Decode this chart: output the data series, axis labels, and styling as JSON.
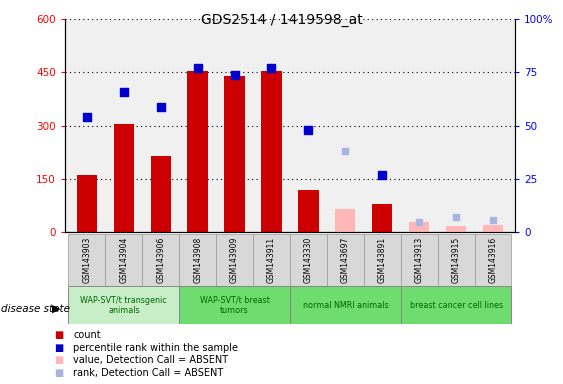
{
  "title": "GDS2514 / 1419598_at",
  "samples": [
    "GSM143903",
    "GSM143904",
    "GSM143906",
    "GSM143908",
    "GSM143909",
    "GSM143911",
    "GSM143330",
    "GSM143697",
    "GSM143891",
    "GSM143913",
    "GSM143915",
    "GSM143916"
  ],
  "count_values": [
    160,
    305,
    215,
    455,
    440,
    455,
    120,
    null,
    80,
    null,
    null,
    null
  ],
  "count_absent": [
    null,
    null,
    null,
    null,
    null,
    null,
    null,
    65,
    null,
    28,
    18,
    22
  ],
  "rank_values_pct": [
    54,
    66,
    59,
    77,
    74,
    77,
    48,
    null,
    27,
    null,
    null,
    null
  ],
  "rank_absent_pct": [
    null,
    null,
    null,
    null,
    null,
    null,
    null,
    38,
    null,
    5,
    7,
    6
  ],
  "groups": [
    {
      "label": "WAP-SVT/t transgenic\nanimals",
      "start": 0,
      "end": 3,
      "color": "#c8eec8"
    },
    {
      "label": "WAP-SVT/t breast\ntumors",
      "start": 3,
      "end": 6,
      "color": "#6fdc6f"
    },
    {
      "label": "normal NMRI animals",
      "start": 6,
      "end": 9,
      "color": "#6fdc6f"
    },
    {
      "label": "breast cancer cell lines",
      "start": 9,
      "end": 12,
      "color": "#6fdc6f"
    }
  ],
  "ylim_left": [
    0,
    600
  ],
  "ylim_right": [
    0,
    100
  ],
  "yticks_left": [
    0,
    150,
    300,
    450,
    600
  ],
  "yticks_right": [
    0,
    25,
    50,
    75,
    100
  ],
  "bar_color": "#cc0000",
  "bar_absent_color": "#ffb6b6",
  "rank_color": "#0000cc",
  "rank_absent_color": "#aab4e0",
  "bg_color": "#f0f0f0",
  "sample_bg_color": "#d8d8d8",
  "group_label_color": "#006600",
  "grid_color": "black",
  "figsize": [
    5.63,
    3.84
  ],
  "dpi": 100
}
